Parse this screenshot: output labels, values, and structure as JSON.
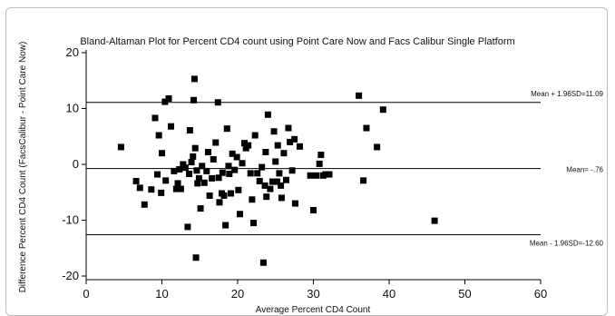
{
  "chart_data": {
    "type": "scatter",
    "title": "Bland-Altaman Plot for Percent CD4 count using Point Care Now and Facs Calibur Single Platform",
    "xlabel": "Average Percent CD4 Count",
    "ylabel": "Difference Percent CD4 Count (FacsCalibur - Point Care Now)",
    "xlim": [
      0,
      60
    ],
    "ylim": [
      -20,
      20
    ],
    "x_ticks": [
      "0",
      "10",
      "20",
      "30",
      "40",
      "50",
      "60"
    ],
    "y_ticks": [
      "-20",
      "-10",
      "0",
      "10",
      "20"
    ],
    "reference_lines": [
      {
        "label": "Mean + 1.96SD=11.09",
        "y": 11.09
      },
      {
        "label": "Mean= -.76",
        "y": -0.76
      },
      {
        "label": "Mean - 1.96SD=-12.60",
        "y": -12.6
      }
    ],
    "points": [
      [
        4.6,
        3.1
      ],
      [
        6.6,
        -3.0
      ],
      [
        7.1,
        -4.2
      ],
      [
        7.7,
        -7.2
      ],
      [
        8.6,
        -4.5
      ],
      [
        9.1,
        8.3
      ],
      [
        9.4,
        -1.8
      ],
      [
        9.6,
        5.2
      ],
      [
        9.9,
        -5.1
      ],
      [
        10.0,
        2.0
      ],
      [
        10.4,
        11.2
      ],
      [
        10.5,
        -2.9
      ],
      [
        10.9,
        11.8
      ],
      [
        11.2,
        6.8
      ],
      [
        11.6,
        -1.2
      ],
      [
        11.9,
        -4.4
      ],
      [
        12.1,
        -3.4
      ],
      [
        12.3,
        -0.9
      ],
      [
        12.5,
        -4.4
      ],
      [
        12.8,
        0.0
      ],
      [
        13.1,
        -0.6
      ],
      [
        13.4,
        -11.2
      ],
      [
        13.6,
        -1.7
      ],
      [
        13.7,
        6.1
      ],
      [
        13.9,
        0.4
      ],
      [
        14.1,
        1.4
      ],
      [
        14.2,
        11.5
      ],
      [
        14.3,
        15.3
      ],
      [
        14.4,
        2.9
      ],
      [
        14.5,
        -16.7
      ],
      [
        14.6,
        -1.1
      ],
      [
        14.7,
        -3.4
      ],
      [
        14.9,
        -2.5
      ],
      [
        15.1,
        -7.9
      ],
      [
        15.3,
        -0.3
      ],
      [
        15.6,
        -3.3
      ],
      [
        15.9,
        -1.2
      ],
      [
        16.1,
        2.2
      ],
      [
        16.3,
        -5.6
      ],
      [
        16.6,
        -2.5
      ],
      [
        16.8,
        0.9
      ],
      [
        17.1,
        3.9
      ],
      [
        17.4,
        11.1
      ],
      [
        17.5,
        -2.4
      ],
      [
        17.6,
        -6.8
      ],
      [
        17.9,
        -5.2
      ],
      [
        18.0,
        -1.5
      ],
      [
        18.2,
        -5.6
      ],
      [
        18.4,
        -10.9
      ],
      [
        18.6,
        6.4
      ],
      [
        18.8,
        -0.3
      ],
      [
        18.9,
        -1.7
      ],
      [
        19.1,
        -5.2
      ],
      [
        19.3,
        1.9
      ],
      [
        19.6,
        -1.0
      ],
      [
        19.9,
        1.3
      ],
      [
        20.1,
        -4.6
      ],
      [
        20.3,
        -8.9
      ],
      [
        20.6,
        0.2
      ],
      [
        20.9,
        3.8
      ],
      [
        21.1,
        2.9
      ],
      [
        21.4,
        3.4
      ],
      [
        21.7,
        -1.6
      ],
      [
        21.9,
        -6.3
      ],
      [
        22.1,
        -10.5
      ],
      [
        22.3,
        5.2
      ],
      [
        22.6,
        -1.6
      ],
      [
        22.9,
        -3.0
      ],
      [
        23.2,
        -0.5
      ],
      [
        23.4,
        -17.6
      ],
      [
        23.6,
        -3.8
      ],
      [
        23.7,
        2.2
      ],
      [
        23.8,
        -5.8
      ],
      [
        24.0,
        8.9
      ],
      [
        24.3,
        -4.4
      ],
      [
        24.6,
        -3.1
      ],
      [
        24.8,
        5.9
      ],
      [
        25.0,
        0.5
      ],
      [
        25.2,
        -3.1
      ],
      [
        25.3,
        3.4
      ],
      [
        25.5,
        -1.6
      ],
      [
        25.7,
        -3.8
      ],
      [
        25.8,
        -6.0
      ],
      [
        26.1,
        2.0
      ],
      [
        26.4,
        -2.8
      ],
      [
        26.7,
        6.5
      ],
      [
        26.9,
        4.0
      ],
      [
        27.2,
        -1.1
      ],
      [
        27.5,
        4.5
      ],
      [
        27.6,
        -7.0
      ],
      [
        28.2,
        3.2
      ],
      [
        29.6,
        -2.0
      ],
      [
        30.0,
        -8.2
      ],
      [
        30.4,
        -2.0
      ],
      [
        30.8,
        0.1
      ],
      [
        31.0,
        1.7
      ],
      [
        31.3,
        -2.0
      ],
      [
        31.6,
        -1.8
      ],
      [
        32.1,
        -1.8
      ],
      [
        36.0,
        12.3
      ],
      [
        36.6,
        -2.9
      ],
      [
        37.0,
        6.5
      ],
      [
        38.4,
        3.1
      ],
      [
        39.2,
        9.8
      ],
      [
        46.0,
        -10.1
      ]
    ]
  }
}
